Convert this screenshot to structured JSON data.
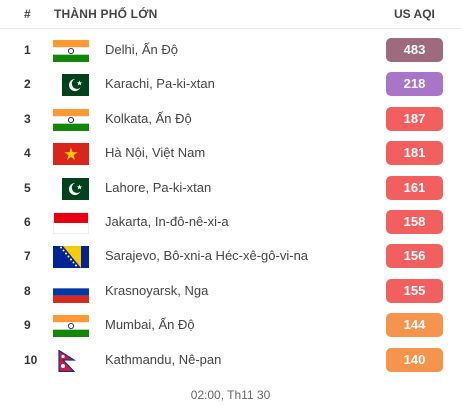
{
  "header": {
    "rank_label": "#",
    "city_label": "THÀNH PHỐ LỚN",
    "aqi_label": "US AQI"
  },
  "colors": {
    "hazardous": "#9e6b7e",
    "very_unhealthy": "#a875c8",
    "unhealthy": "#f25f5f",
    "sensitive": "#f6944d"
  },
  "rows": [
    {
      "rank": "1",
      "city": "Delhi, Ấn Độ",
      "aqi": "483",
      "flag": "india-flag-icon",
      "color": "#9e6b7e"
    },
    {
      "rank": "2",
      "city": "Karachi, Pa-ki-xtan",
      "aqi": "218",
      "flag": "pakistan-flag-icon",
      "color": "#a875c8"
    },
    {
      "rank": "3",
      "city": "Kolkata, Ấn Độ",
      "aqi": "187",
      "flag": "india-flag-icon",
      "color": "#f25f5f"
    },
    {
      "rank": "4",
      "city": "Hà Nội, Việt Nam",
      "aqi": "181",
      "flag": "vietnam-flag-icon",
      "color": "#f25f5f"
    },
    {
      "rank": "5",
      "city": "Lahore, Pa-ki-xtan",
      "aqi": "161",
      "flag": "pakistan-flag-icon",
      "color": "#f25f5f"
    },
    {
      "rank": "6",
      "city": "Jakarta, In-đô-nê-xi-a",
      "aqi": "158",
      "flag": "indonesia-flag-icon",
      "color": "#f25f5f"
    },
    {
      "rank": "7",
      "city": "Sarajevo, Bô-xni-a Héc-xê-gô-vi-na",
      "aqi": "156",
      "flag": "bosnia-flag-icon",
      "color": "#f25f5f"
    },
    {
      "rank": "8",
      "city": "Krasnoyarsk, Nga",
      "aqi": "155",
      "flag": "russia-flag-icon",
      "color": "#f25f5f"
    },
    {
      "rank": "9",
      "city": "Mumbai, Ấn Độ",
      "aqi": "144",
      "flag": "india-flag-icon",
      "color": "#f6944d"
    },
    {
      "rank": "10",
      "city": "Kathmandu, Nê-pan",
      "aqi": "140",
      "flag": "nepal-flag-icon",
      "color": "#f6944d"
    }
  ],
  "footer": {
    "timestamp": "02:00, Th11 30"
  }
}
